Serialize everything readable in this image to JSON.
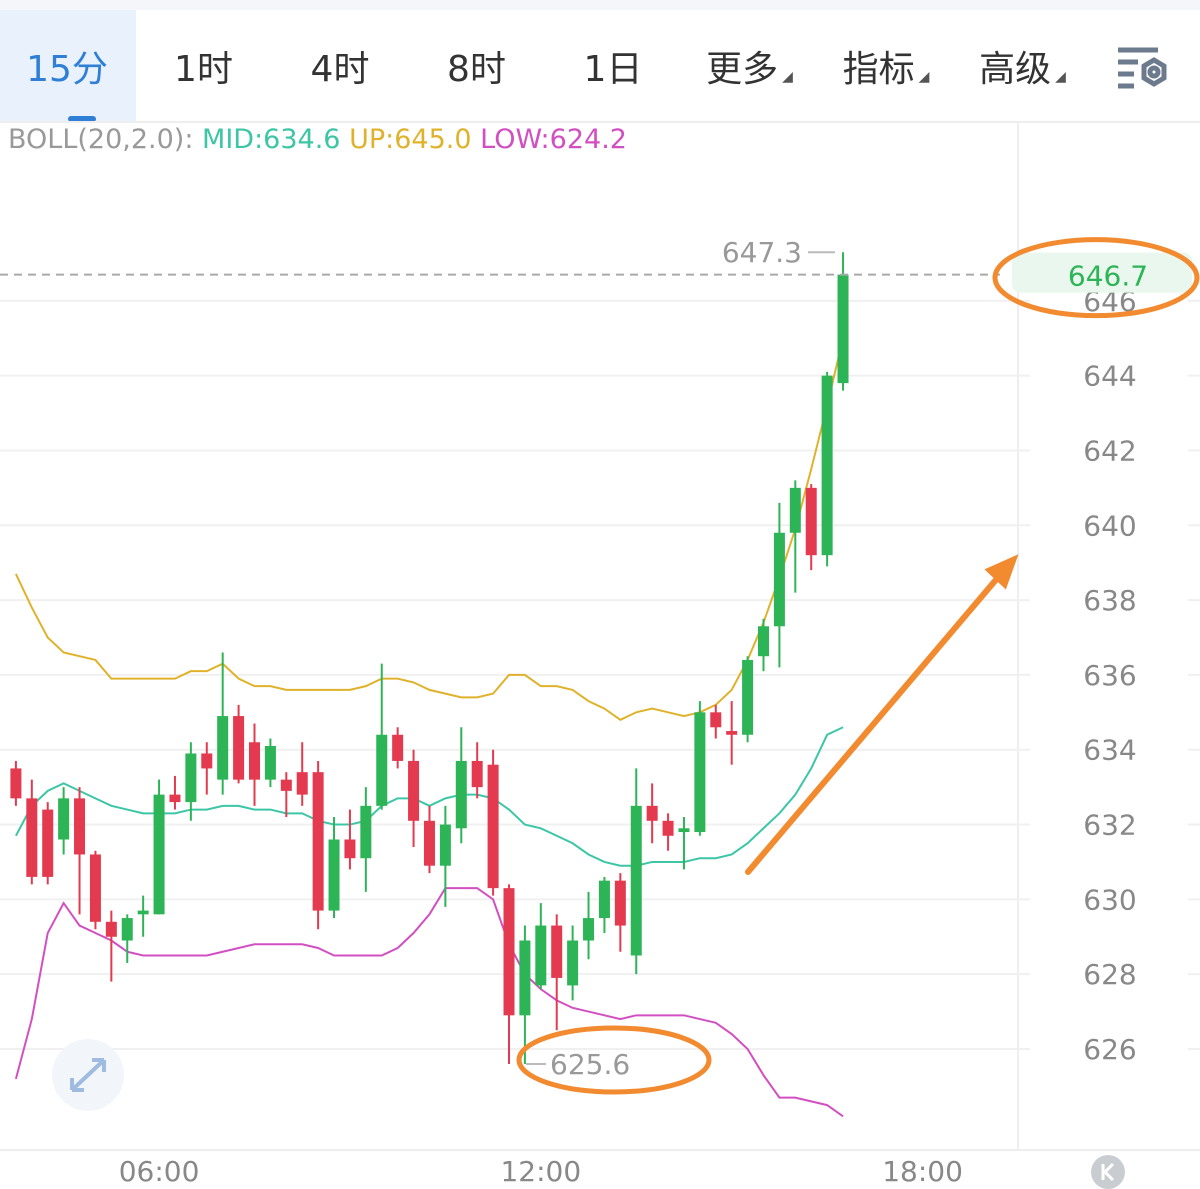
{
  "tabs": [
    "15分",
    "1时",
    "4时",
    "8时",
    "1日",
    "更多",
    "指标",
    "高级"
  ],
  "indicator": {
    "label": "BOLL(20,2.0):",
    "mid": "MID:634.6",
    "up": "UP:645.0",
    "low": "LOW:624.2"
  },
  "chart_data": {
    "type": "candlestick",
    "up_color": "#2db456",
    "down_color": "#e33a4f",
    "x": [
      3.75,
      4,
      4.25,
      4.5,
      4.75,
      5,
      5.25,
      5.5,
      5.75,
      6,
      6.25,
      6.5,
      6.75,
      7,
      7.25,
      7.5,
      7.75,
      8,
      8.25,
      8.5,
      8.75,
      9,
      9.25,
      9.5,
      9.75,
      10,
      10.25,
      10.5,
      10.75,
      11,
      11.25,
      11.5,
      11.75,
      12,
      12.25,
      12.5,
      12.75,
      13,
      13.25,
      13.5,
      13.75,
      14,
      14.25,
      14.5,
      14.75,
      15,
      15.25,
      15.5,
      15.75,
      16,
      16.25,
      16.5,
      16.75
    ],
    "open": [
      633.5,
      632.7,
      632.4,
      631.6,
      632.7,
      631.2,
      629.4,
      628.9,
      629.6,
      629.6,
      632.8,
      632.6,
      633.9,
      633.2,
      634.9,
      634.2,
      633.2,
      633.2,
      633.4,
      633.4,
      629.7,
      631.6,
      631.1,
      632.5,
      634.4,
      633.7,
      632.1,
      630.9,
      631.9,
      633.7,
      633.6,
      630.3,
      626.9,
      627.7,
      629.3,
      627.7,
      628.9,
      629.5,
      630.5,
      628.5,
      632.5,
      632.1,
      631.8,
      631.8,
      635.0,
      634.5,
      634.4,
      636.5,
      637.3,
      639.8,
      641.0,
      639.2,
      643.8
    ],
    "high": [
      633.7,
      633.2,
      632.6,
      633.0,
      633.0,
      631.3,
      629.7,
      629.6,
      630.1,
      633.2,
      633.3,
      634.2,
      634.2,
      636.6,
      635.2,
      634.7,
      634.3,
      633.4,
      634.2,
      633.7,
      632.2,
      632.4,
      633.0,
      636.3,
      634.6,
      634.0,
      632.5,
      632.5,
      634.6,
      634.2,
      634.0,
      630.4,
      629.3,
      629.9,
      629.6,
      629.3,
      630.2,
      630.6,
      630.7,
      633.5,
      633.1,
      632.3,
      632.2,
      635.3,
      635.2,
      635.3,
      636.5,
      637.5,
      640.6,
      641.2,
      641.1,
      644.1,
      647.3
    ],
    "low": [
      632.5,
      630.4,
      630.4,
      631.2,
      629.6,
      629.2,
      627.8,
      628.3,
      629.0,
      629.6,
      632.4,
      632.1,
      632.8,
      632.8,
      633.1,
      632.5,
      633.0,
      632.2,
      632.5,
      629.2,
      629.5,
      630.8,
      630.2,
      632.4,
      633.5,
      631.4,
      630.7,
      629.8,
      631.5,
      632.7,
      630.1,
      625.6,
      625.6,
      627.6,
      626.5,
      627.3,
      628.4,
      629.1,
      628.6,
      628.0,
      631.5,
      631.3,
      630.8,
      631.7,
      634.3,
      633.6,
      634.2,
      636.1,
      636.2,
      638.2,
      638.8,
      638.9,
      643.6
    ],
    "close": [
      632.7,
      630.6,
      630.6,
      632.7,
      631.2,
      629.4,
      629.0,
      629.5,
      629.7,
      632.8,
      632.6,
      633.9,
      633.5,
      634.9,
      633.2,
      633.2,
      634.1,
      632.9,
      632.8,
      629.7,
      631.6,
      631.1,
      632.5,
      634.4,
      633.7,
      632.1,
      630.9,
      632.0,
      633.7,
      633.0,
      630.3,
      626.9,
      628.9,
      629.3,
      627.9,
      628.9,
      629.5,
      630.5,
      629.3,
      632.5,
      632.1,
      631.7,
      631.9,
      635.0,
      634.6,
      634.4,
      636.4,
      637.3,
      639.8,
      641.0,
      639.2,
      644.0,
      646.7
    ],
    "lines": [
      {
        "color": "#e0b22c",
        "values": [
          638.7,
          637.8,
          637.0,
          636.6,
          636.5,
          636.4,
          635.9,
          635.9,
          635.9,
          635.9,
          635.9,
          636.1,
          636.1,
          636.3,
          635.9,
          635.7,
          635.7,
          635.6,
          635.6,
          635.6,
          635.6,
          635.6,
          635.7,
          635.9,
          635.9,
          635.8,
          635.6,
          635.5,
          635.4,
          635.4,
          635.5,
          636.0,
          636.0,
          635.7,
          635.7,
          635.6,
          635.3,
          635.1,
          634.8,
          635.0,
          635.1,
          635.0,
          634.9,
          635.0,
          635.2,
          635.6,
          636.4,
          637.4,
          638.6,
          639.9,
          641.5,
          643.2,
          645.0
        ]
      },
      {
        "color": "#3cc6a6",
        "values": [
          631.7,
          632.5,
          632.9,
          633.1,
          632.9,
          632.7,
          632.5,
          632.4,
          632.3,
          632.3,
          632.3,
          632.4,
          632.4,
          632.5,
          632.5,
          632.4,
          632.4,
          632.3,
          632.3,
          632.1,
          632.0,
          632.0,
          632.1,
          632.5,
          632.7,
          632.7,
          632.5,
          632.7,
          632.8,
          632.8,
          632.7,
          632.4,
          632.0,
          631.9,
          631.7,
          631.5,
          631.2,
          631.0,
          630.9,
          630.9,
          631.0,
          631.0,
          631.0,
          631.1,
          631.1,
          631.2,
          631.5,
          631.9,
          632.3,
          632.8,
          633.5,
          634.4,
          634.6
        ]
      },
      {
        "color": "#d24fc2",
        "values": [
          625.2,
          626.8,
          629.1,
          629.9,
          629.3,
          629.1,
          628.9,
          628.6,
          628.5,
          628.5,
          628.5,
          628.5,
          628.5,
          628.6,
          628.7,
          628.8,
          628.8,
          628.8,
          628.8,
          628.7,
          628.5,
          628.5,
          628.5,
          628.5,
          628.7,
          629.1,
          629.6,
          630.3,
          630.3,
          630.3,
          630.0,
          628.8,
          628.0,
          627.6,
          627.3,
          627.1,
          627.0,
          626.9,
          626.8,
          626.9,
          626.9,
          626.9,
          626.9,
          626.8,
          626.7,
          626.4,
          626.0,
          625.3,
          624.7,
          624.7,
          624.6,
          624.5,
          624.2
        ]
      }
    ],
    "xlim": [
      3.5,
      19.5
    ],
    "xticks": [
      {
        "value": 6,
        "label": "06:00"
      },
      {
        "value": 12,
        "label": "12:00"
      },
      {
        "value": 18,
        "label": "18:00"
      }
    ],
    "ylim": [
      623.3,
      650.7
    ],
    "yticks": [
      626,
      628,
      630,
      632,
      634,
      636,
      638,
      640,
      642,
      644,
      646
    ],
    "grid": true,
    "last_price": 646.7,
    "high_label": 647.3,
    "low_label": 625.6
  }
}
